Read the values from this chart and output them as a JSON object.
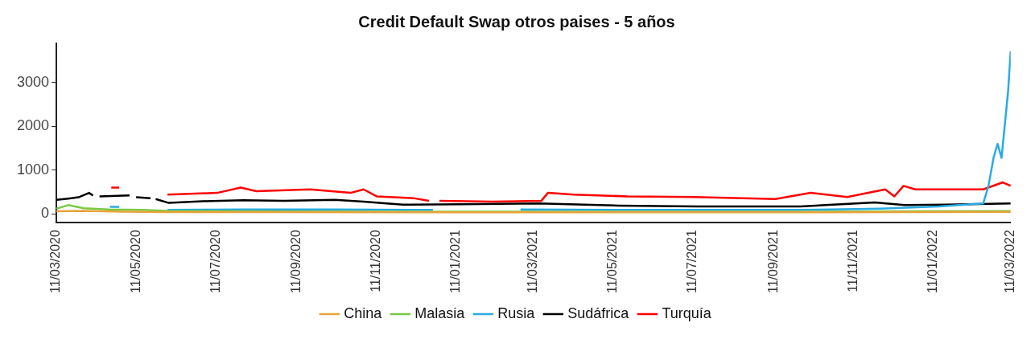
{
  "chart_data": {
    "type": "line",
    "title": "Credit Default Swap otros paises - 5 años",
    "xlim": [
      "2020-03-11",
      "2022-03-11"
    ],
    "xticks": [
      {
        "value": "2020-03-11",
        "label": "11/03/2020"
      },
      {
        "value": "2020-05-11",
        "label": "11/05/2020"
      },
      {
        "value": "2020-07-11",
        "label": "11/07/2020"
      },
      {
        "value": "2020-09-11",
        "label": "11/09/2020"
      },
      {
        "value": "2020-11-11",
        "label": "11/11/2020"
      },
      {
        "value": "2021-01-11",
        "label": "11/01/2021"
      },
      {
        "value": "2021-03-11",
        "label": "11/03/2021"
      },
      {
        "value": "2021-05-11",
        "label": "11/05/2021"
      },
      {
        "value": "2021-07-11",
        "label": "11/07/2021"
      },
      {
        "value": "2021-09-11",
        "label": "11/09/2021"
      },
      {
        "value": "2021-11-11",
        "label": "11/11/2021"
      },
      {
        "value": "2022-01-11",
        "label": "11/01/2022"
      },
      {
        "value": "2022-03-11",
        "label": "11/03/2022"
      }
    ],
    "ylim": [
      -200,
      3900
    ],
    "yticks": [
      0,
      1000,
      2000,
      3000
    ],
    "grid": false,
    "legend": "bottom",
    "marker": "none",
    "line_style": "solid",
    "series": [
      {
        "name": "China",
        "color": "#e8a33a",
        "x": [
          "2020-03-11",
          "2020-04-01",
          "2020-05-01",
          "2020-06-01",
          "2020-09-01",
          "2021-01-01",
          "2021-06-01",
          "2021-10-01",
          "2022-01-01",
          "2022-03-11"
        ],
        "values": [
          60,
          70,
          50,
          40,
          40,
          35,
          35,
          35,
          40,
          45
        ]
      },
      {
        "name": "Malasia",
        "color": "#7ac943",
        "x": [
          "2020-03-11",
          "2020-03-20",
          "2020-04-01",
          "2020-04-20",
          "2020-05-15",
          "2020-06-04",
          "2020-09-01",
          "2021-01-01",
          "2021-06-01",
          "2021-10-01",
          "2022-01-01",
          "2022-03-11"
        ],
        "values": [
          120,
          200,
          130,
          100,
          90,
          70,
          55,
          50,
          50,
          50,
          60,
          65
        ]
      },
      {
        "name": "Rusia",
        "color": "#29abe2",
        "x": [
          "2020-04-21",
          "2020-04-28",
          "2020-04-29",
          "2020-06-04",
          "2020-08-01",
          "2020-10-10",
          "2020-12-24",
          "2020-12-28",
          "2021-03-01",
          "2021-06-01",
          "2021-10-01",
          "2021-12-01",
          "2022-01-15",
          "2022-02-18",
          "2022-02-22",
          "2022-02-26",
          "2022-03-01",
          "2022-03-04",
          "2022-03-09",
          "2022-03-11"
        ],
        "values": [
          160,
          160,
          null,
          90,
          100,
          100,
          90,
          null,
          100,
          90,
          90,
          120,
          170,
          240,
          640,
          1300,
          1600,
          1280,
          2800,
          3720
        ]
      },
      {
        "name": "Sudáfrica",
        "color": "#000000",
        "x": [
          "2020-03-11",
          "2020-03-20",
          "2020-03-28",
          "2020-04-05",
          "2020-04-08",
          "2020-04-10",
          "2020-04-13",
          "2020-05-06",
          "2020-05-08",
          "2020-05-11",
          "2020-05-22",
          "2020-05-24",
          "2020-05-26",
          "2020-06-05",
          "2020-07-01",
          "2020-08-01",
          "2020-09-01",
          "2020-10-10",
          "2020-11-01",
          "2020-12-01",
          "2021-01-15",
          "2021-03-15",
          "2021-05-15",
          "2021-07-15",
          "2021-10-01",
          "2021-11-27",
          "2021-12-20",
          "2022-01-20",
          "2022-03-11"
        ],
        "values": [
          320,
          350,
          380,
          480,
          420,
          null,
          400,
          420,
          null,
          380,
          360,
          null,
          340,
          250,
          290,
          310,
          300,
          320,
          280,
          210,
          220,
          240,
          190,
          170,
          170,
          260,
          200,
          210,
          240
        ]
      },
      {
        "name": "Turquía",
        "color": "#ff0000",
        "x": [
          "2020-04-22",
          "2020-04-28",
          "2020-05-01",
          "2020-06-04",
          "2020-07-12",
          "2020-07-30",
          "2020-08-11",
          "2020-09-21",
          "2020-10-22",
          "2020-11-01",
          "2020-11-11",
          "2020-12-09",
          "2020-12-21",
          "2020-12-24",
          "2020-12-29",
          "2021-02-08",
          "2021-03-17",
          "2021-03-22",
          "2021-04-11",
          "2021-05-22",
          "2021-07-11",
          "2021-09-12",
          "2021-10-09",
          "2021-11-06",
          "2021-12-05",
          "2021-12-12",
          "2021-12-19",
          "2021-12-28",
          "2022-02-18",
          "2022-03-05",
          "2022-03-11"
        ],
        "values": [
          600,
          600,
          null,
          440,
          480,
          600,
          520,
          560,
          480,
          560,
          400,
          360,
          300,
          null,
          300,
          280,
          300,
          480,
          440,
          400,
          385,
          340,
          480,
          385,
          560,
          400,
          640,
          560,
          560,
          720,
          640
        ]
      }
    ]
  }
}
